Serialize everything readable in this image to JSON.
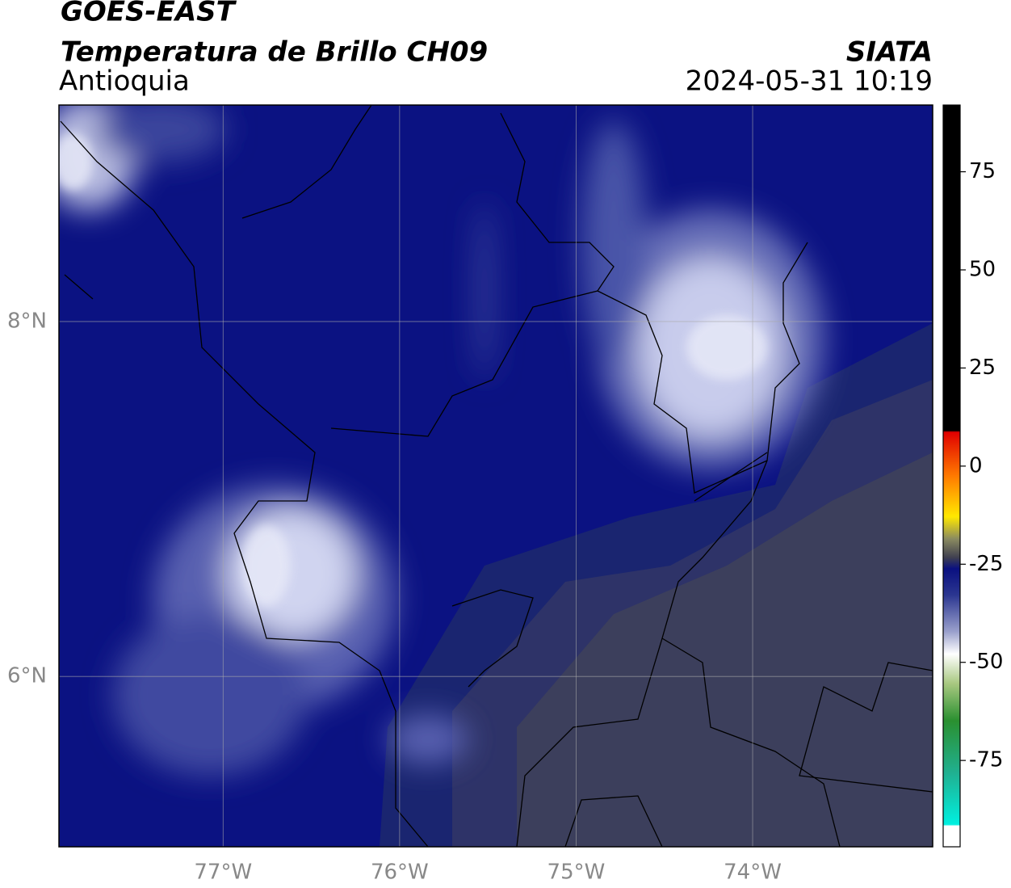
{
  "header": {
    "satellite": "GOES-EAST",
    "product": "Temperatura de Brillo CH09",
    "region": "Antioquia",
    "source": "SIATA",
    "datetime": "2024-05-31 10:19"
  },
  "map": {
    "xlim": [
      -77.93,
      -72.98
    ],
    "ylim": [
      5.04,
      9.22
    ],
    "xticks": [
      {
        "value": -77,
        "label": "77°W"
      },
      {
        "value": -76,
        "label": "76°W"
      },
      {
        "value": -75,
        "label": "75°W"
      },
      {
        "value": -74,
        "label": "74°W"
      }
    ],
    "yticks": [
      {
        "value": 6,
        "label": "6°N"
      },
      {
        "value": 8,
        "label": "8°N"
      }
    ],
    "grid": true
  },
  "colorbar": {
    "lim": [
      -97,
      92
    ],
    "ticks": [
      -75,
      -50,
      -25,
      0,
      25,
      50,
      75
    ]
  }
}
